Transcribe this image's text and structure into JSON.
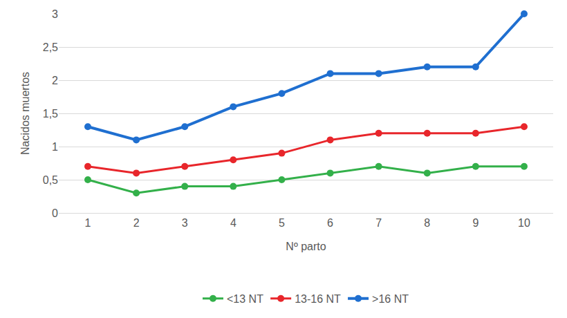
{
  "chart_data": {
    "type": "line",
    "x_label": "Nº parto",
    "y_label": "Nacidos muertos",
    "categories": [
      "1",
      "2",
      "3",
      "4",
      "5",
      "6",
      "7",
      "8",
      "9",
      "10"
    ],
    "series": [
      {
        "name": "<13 NT",
        "color": "#33b04a",
        "marker": "circle",
        "values": [
          0.5,
          0.3,
          0.4,
          0.4,
          0.5,
          0.6,
          0.7,
          0.6,
          0.7,
          0.7
        ]
      },
      {
        "name": "13-16 NT",
        "color": "#e8262b",
        "marker": "circle",
        "values": [
          0.7,
          0.6,
          0.7,
          0.8,
          0.9,
          1.1,
          1.2,
          1.2,
          1.2,
          1.3
        ]
      },
      {
        "name": ">16 NT",
        "color": "#1f6fd0",
        "marker": "circle",
        "values": [
          1.3,
          1.1,
          1.3,
          1.6,
          1.8,
          2.1,
          2.1,
          2.2,
          2.2,
          3.0
        ]
      }
    ],
    "ylim": [
      0,
      3
    ],
    "yticks": [
      0,
      {
        "value": 0.5,
        "label": "0,5"
      },
      1,
      {
        "value": 1.5,
        "label": "1,5"
      },
      2,
      {
        "value": 2.5,
        "label": "2,5"
      },
      3
    ],
    "grid": true,
    "legend": "bottom"
  }
}
